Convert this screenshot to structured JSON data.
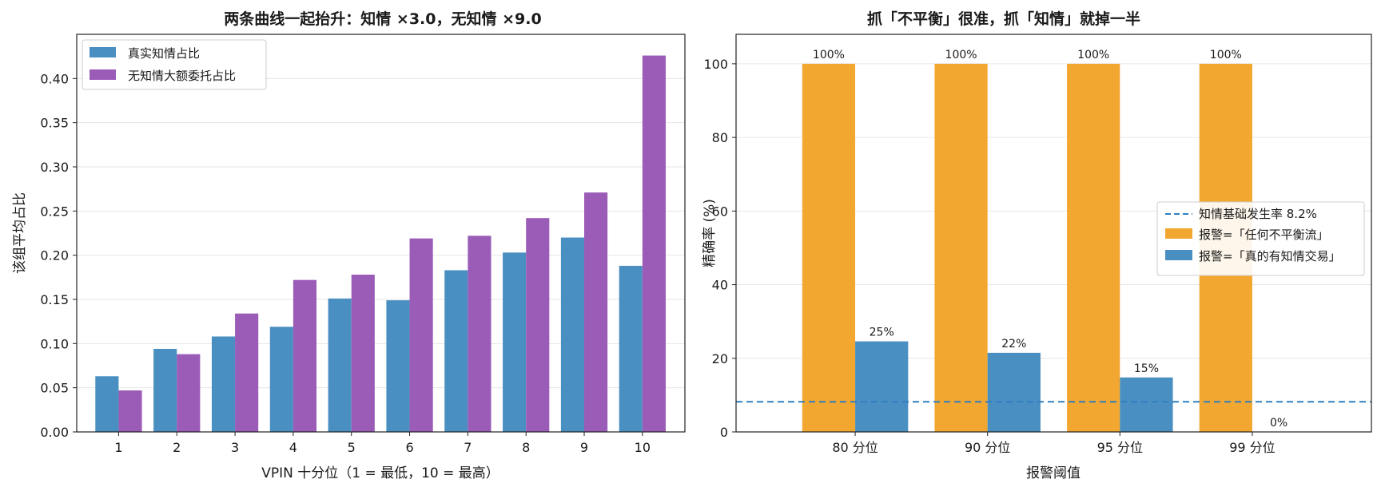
{
  "chart_data": [
    {
      "type": "bar",
      "title": "两条曲线一起抬升：知情 ×3.0，无知情 ×9.0",
      "xlabel": "VPIN 十分位（1 = 最低，10 = 最高）",
      "ylabel": "该组平均占比",
      "categories": [
        "1",
        "2",
        "3",
        "4",
        "5",
        "6",
        "7",
        "8",
        "9",
        "10"
      ],
      "series": [
        {
          "name": "真实知情占比",
          "color": "#4a8fc1",
          "values": [
            0.063,
            0.094,
            0.108,
            0.119,
            0.151,
            0.149,
            0.183,
            0.203,
            0.22,
            0.188
          ]
        },
        {
          "name": "无知情大额委托占比",
          "color": "#9b5cb8",
          "values": [
            0.047,
            0.088,
            0.134,
            0.172,
            0.178,
            0.219,
            0.222,
            0.242,
            0.271,
            0.426
          ]
        }
      ],
      "ylim": [
        0,
        0.45
      ],
      "yticks": [
        "0.00",
        "0.05",
        "0.10",
        "0.15",
        "0.20",
        "0.25",
        "0.30",
        "0.35",
        "0.40"
      ],
      "grid": "y",
      "legend": "top-left"
    },
    {
      "type": "bar",
      "title": "抓「不平衡」很准，抓「知情」就掉一半",
      "xlabel": "报警阈值",
      "ylabel": "精确率 (%)",
      "categories": [
        "80 分位",
        "90 分位",
        "95 分位",
        "99 分位"
      ],
      "series": [
        {
          "name": "报警=「任何不平衡流」",
          "color": "#f2a731",
          "values": [
            100,
            100,
            100,
            100
          ],
          "labels": [
            "100%",
            "100%",
            "100%",
            "100%"
          ]
        },
        {
          "name": "报警=「真的有知情交易」",
          "color": "#4a8fc1",
          "values": [
            24.6,
            21.5,
            14.8,
            0
          ],
          "labels": [
            "25%",
            "22%",
            "15%",
            "0%"
          ]
        }
      ],
      "reference_line": {
        "name": "知情基础发生率 8.2%",
        "value": 8.2,
        "color": "#2f7fc1",
        "style": "dashed"
      },
      "ylim": [
        0,
        108
      ],
      "yticks": [
        "0",
        "20",
        "40",
        "60",
        "80",
        "100"
      ],
      "grid": "y",
      "legend": "center-right"
    }
  ]
}
